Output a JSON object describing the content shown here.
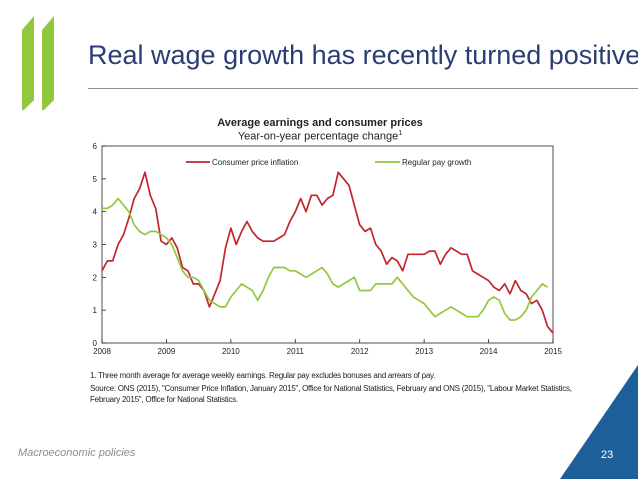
{
  "slide": {
    "title": "Real wage growth has recently turned positive",
    "footer_label": "Macroeconomic policies",
    "page_number": "23",
    "brand_colors": {
      "green": "#92c83e",
      "navy": "#1f5f99",
      "title": "#2b3e73",
      "rule": "#8c8c8c"
    }
  },
  "notes": {
    "footnote": "1. Three month average for average weekly earnings. Regular pay excludes bonuses and arrears of pay.",
    "source": "Source:  ONS (2015), \"Consumer Price Inflation, January 2015\", Office for National Statistics, February and ONS (2015), \"Labour Market Statistics, February 2015\", Office for National Statistics."
  },
  "chart_data": {
    "type": "line",
    "title": "Average earnings and consumer prices",
    "subtitle": "Year-on-year percentage change",
    "subtitle_note": "1",
    "xlabel": "",
    "ylabel": "",
    "xlim": [
      2008.0,
      2015.0
    ],
    "ylim": [
      0,
      6
    ],
    "x_ticks": [
      "2008",
      "2009",
      "2010",
      "2011",
      "2012",
      "2013",
      "2014",
      "2015"
    ],
    "y_ticks": [
      "0",
      "1",
      "2",
      "3",
      "4",
      "5",
      "6"
    ],
    "grid": false,
    "legend_position": "top",
    "x_start": "2008-01",
    "x_step": "month",
    "series": [
      {
        "name": "Consumer price inflation",
        "color": "#c0262d",
        "values": [
          2.2,
          2.5,
          2.5,
          3.0,
          3.3,
          3.8,
          4.4,
          4.7,
          5.2,
          4.5,
          4.1,
          3.1,
          3.0,
          3.2,
          2.9,
          2.3,
          2.2,
          1.8,
          1.8,
          1.6,
          1.1,
          1.5,
          1.9,
          2.9,
          3.5,
          3.0,
          3.4,
          3.7,
          3.4,
          3.2,
          3.1,
          3.1,
          3.1,
          3.2,
          3.3,
          3.7,
          4.0,
          4.4,
          4.0,
          4.5,
          4.5,
          4.2,
          4.4,
          4.5,
          5.2,
          5.0,
          4.8,
          4.2,
          3.6,
          3.4,
          3.5,
          3.0,
          2.8,
          2.4,
          2.6,
          2.5,
          2.2,
          2.7,
          2.7,
          2.7,
          2.7,
          2.8,
          2.8,
          2.4,
          2.7,
          2.9,
          2.8,
          2.7,
          2.7,
          2.2,
          2.1,
          2.0,
          1.9,
          1.7,
          1.6,
          1.8,
          1.5,
          1.9,
          1.6,
          1.5,
          1.2,
          1.3,
          1.0,
          0.5,
          0.3
        ]
      },
      {
        "name": "Regular pay growth",
        "color": "#92c83e",
        "values": [
          4.1,
          4.1,
          4.2,
          4.4,
          4.2,
          4.0,
          3.6,
          3.4,
          3.3,
          3.4,
          3.4,
          3.3,
          3.2,
          3.0,
          2.6,
          2.2,
          2.0,
          2.0,
          1.9,
          1.6,
          1.3,
          1.2,
          1.1,
          1.1,
          1.4,
          1.6,
          1.8,
          1.7,
          1.6,
          1.3,
          1.6,
          2.0,
          2.3,
          2.3,
          2.3,
          2.2,
          2.2,
          2.1,
          2.0,
          2.1,
          2.2,
          2.3,
          2.1,
          1.8,
          1.7,
          1.8,
          1.9,
          2.0,
          1.6,
          1.6,
          1.6,
          1.8,
          1.8,
          1.8,
          1.8,
          2.0,
          1.8,
          1.6,
          1.4,
          1.3,
          1.2,
          1.0,
          0.8,
          0.9,
          1.0,
          1.1,
          1.0,
          0.9,
          0.8,
          0.8,
          0.8,
          1.0,
          1.3,
          1.4,
          1.3,
          0.9,
          0.7,
          0.7,
          0.8,
          1.0,
          1.4,
          1.6,
          1.8,
          1.7
        ]
      }
    ]
  }
}
